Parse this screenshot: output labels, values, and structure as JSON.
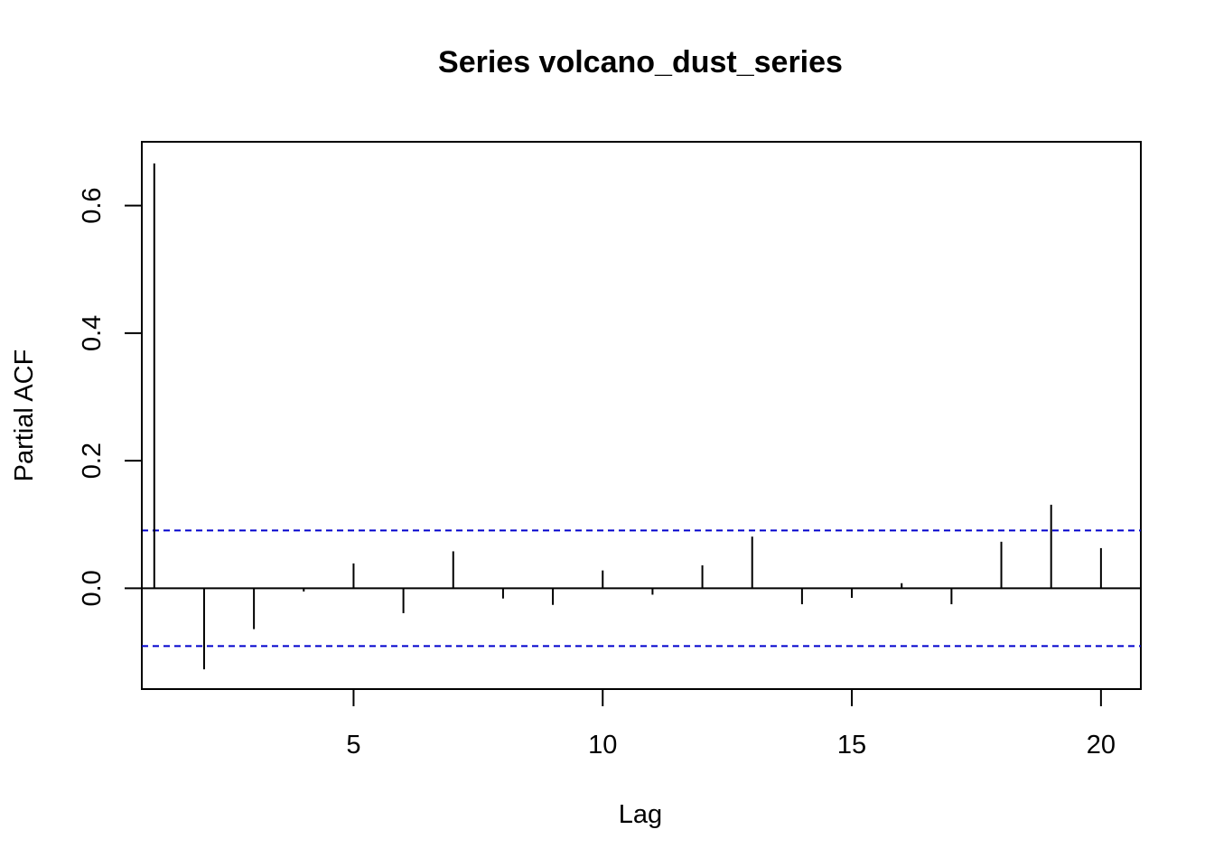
{
  "chart_data": {
    "type": "bar",
    "title": "Series  volcano_dust_series",
    "xlabel": "Lag",
    "ylabel": "Partial ACF",
    "xlim": [
      0.75,
      20.8
    ],
    "ylim": [
      -0.158,
      0.7
    ],
    "x_ticks": [
      5,
      10,
      15,
      20
    ],
    "x_tick_labels": [
      "5",
      "10",
      "15",
      "20"
    ],
    "y_ticks": [
      0.0,
      0.2,
      0.4,
      0.6
    ],
    "y_tick_labels": [
      "0.0",
      "0.2",
      "0.4",
      "0.6"
    ],
    "lags": [
      1,
      2,
      3,
      4,
      5,
      6,
      7,
      8,
      9,
      10,
      11,
      12,
      13,
      14,
      15,
      16,
      17,
      18,
      19,
      20
    ],
    "values": [
      0.666,
      -0.127,
      -0.064,
      -0.005,
      0.039,
      -0.039,
      0.058,
      -0.016,
      -0.026,
      0.028,
      -0.01,
      0.036,
      0.081,
      -0.025,
      -0.015,
      0.008,
      -0.025,
      0.073,
      0.131,
      0.063
    ],
    "confidence_bounds": [
      0.0906,
      -0.0906
    ],
    "bound_color": "#0000cd",
    "bar_color": "#000000",
    "grid": false
  }
}
